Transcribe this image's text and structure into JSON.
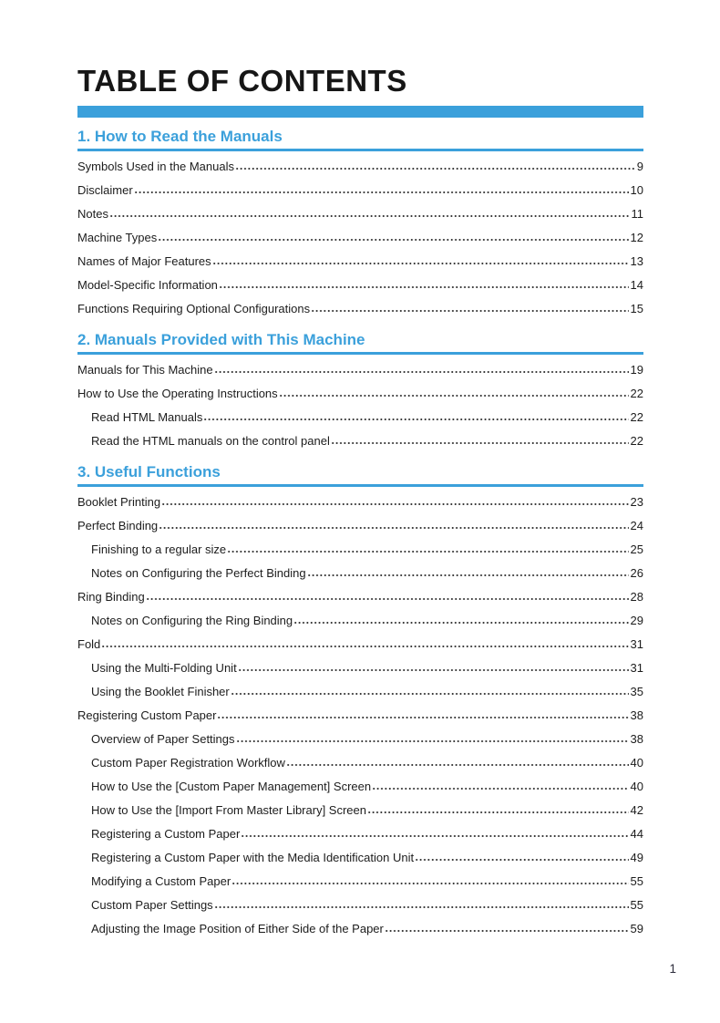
{
  "document": {
    "title": "TABLE OF CONTENTS",
    "accent_color": "#3ba0db",
    "footer": {
      "page_number": "1"
    }
  },
  "sections": [
    {
      "heading": "1. How to Read the Manuals",
      "entries": [
        {
          "label": "Symbols Used in the Manuals",
          "page": "9",
          "indent": 0
        },
        {
          "label": "Disclaimer",
          "page": "10",
          "indent": 0
        },
        {
          "label": "Notes",
          "page": "11",
          "indent": 0
        },
        {
          "label": "Machine Types",
          "page": "12",
          "indent": 0
        },
        {
          "label": "Names of Major Features",
          "page": "13",
          "indent": 0
        },
        {
          "label": "Model-Specific Information",
          "page": "14",
          "indent": 0
        },
        {
          "label": "Functions Requiring Optional Configurations",
          "page": "15",
          "indent": 0
        }
      ]
    },
    {
      "heading": "2. Manuals Provided with This Machine",
      "entries": [
        {
          "label": "Manuals for This Machine",
          "page": "19",
          "indent": 0
        },
        {
          "label": "How to Use the Operating Instructions",
          "page": "22",
          "indent": 0
        },
        {
          "label": "Read HTML Manuals",
          "page": "22",
          "indent": 1
        },
        {
          "label": "Read the HTML manuals on the control panel",
          "page": "22",
          "indent": 1
        }
      ]
    },
    {
      "heading": "3. Useful Functions",
      "entries": [
        {
          "label": "Booklet Printing",
          "page": "23",
          "indent": 0
        },
        {
          "label": "Perfect Binding",
          "page": "24",
          "indent": 0
        },
        {
          "label": "Finishing to a regular size",
          "page": "25",
          "indent": 1
        },
        {
          "label": "Notes on Configuring the Perfect Binding",
          "page": "26",
          "indent": 1
        },
        {
          "label": "Ring Binding",
          "page": "28",
          "indent": 0
        },
        {
          "label": "Notes on Configuring the Ring Binding",
          "page": "29",
          "indent": 1
        },
        {
          "label": "Fold",
          "page": "31",
          "indent": 0
        },
        {
          "label": "Using the Multi-Folding Unit",
          "page": "31",
          "indent": 1
        },
        {
          "label": "Using the Booklet Finisher",
          "page": "35",
          "indent": 1
        },
        {
          "label": "Registering Custom Paper",
          "page": "38",
          "indent": 0
        },
        {
          "label": "Overview of Paper Settings",
          "page": "38",
          "indent": 1
        },
        {
          "label": "Custom Paper Registration Workflow",
          "page": "40",
          "indent": 1
        },
        {
          "label": "How to Use the [Custom Paper Management] Screen",
          "page": "40",
          "indent": 1
        },
        {
          "label": "How to Use the [Import From Master Library] Screen",
          "page": "42",
          "indent": 1
        },
        {
          "label": "Registering a Custom Paper",
          "page": "44",
          "indent": 1
        },
        {
          "label": "Registering a Custom Paper with the Media Identification Unit",
          "page": "49",
          "indent": 1
        },
        {
          "label": "Modifying a Custom Paper",
          "page": "55",
          "indent": 1
        },
        {
          "label": "Custom Paper Settings",
          "page": "55",
          "indent": 1
        },
        {
          "label": "Adjusting the Image Position of Either Side of the Paper",
          "page": "59",
          "indent": 1
        }
      ]
    }
  ]
}
